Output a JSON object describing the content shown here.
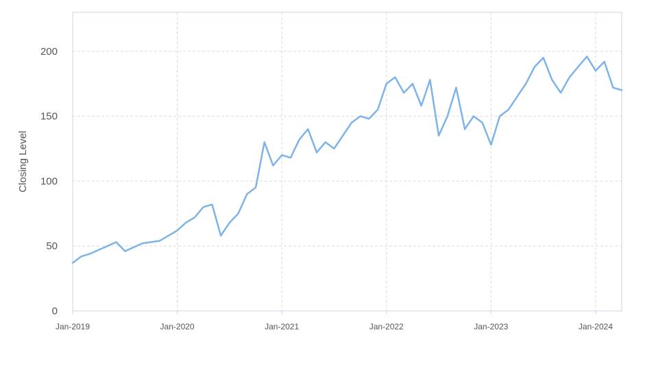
{
  "chart_data": {
    "type": "line",
    "title": "",
    "xlabel": "",
    "ylabel": "Closing Level",
    "x_tick_labels": [
      "Jan-2019",
      "Jan-2020",
      "Jan-2021",
      "Jan-2022",
      "Jan-2023",
      "Jan-2024"
    ],
    "x_ticks": [
      "2019-01",
      "2020-01",
      "2021-01",
      "2022-01",
      "2023-01",
      "2024-01"
    ],
    "xlim": [
      "2019-01",
      "2024-04"
    ],
    "y_ticks": [
      0,
      50,
      100,
      150,
      200
    ],
    "ylim": [
      0,
      230
    ],
    "grid": true,
    "legend": "none",
    "line_color": "#7eb3e8",
    "series": [
      {
        "x": [
          "2019-01",
          "2019-02",
          "2019-03",
          "2019-04",
          "2019-05",
          "2019-06",
          "2019-07",
          "2019-08",
          "2019-09",
          "2019-10",
          "2019-11",
          "2019-12",
          "2020-01",
          "2020-02",
          "2020-03",
          "2020-04",
          "2020-05",
          "2020-06",
          "2020-07",
          "2020-08",
          "2020-09",
          "2020-10",
          "2020-11",
          "2020-12",
          "2021-01",
          "2021-02",
          "2021-03",
          "2021-04",
          "2021-05",
          "2021-06",
          "2021-07",
          "2021-08",
          "2021-09",
          "2021-10",
          "2021-11",
          "2021-12",
          "2022-01",
          "2022-02",
          "2022-03",
          "2022-04",
          "2022-05",
          "2022-06",
          "2022-07",
          "2022-08",
          "2022-09",
          "2022-10",
          "2022-11",
          "2022-12",
          "2023-01",
          "2023-02",
          "2023-03",
          "2023-04",
          "2023-05",
          "2023-06",
          "2023-07",
          "2023-08",
          "2023-09",
          "2023-10",
          "2023-11",
          "2023-12",
          "2024-01",
          "2024-02",
          "2024-03",
          "2024-04"
        ],
        "values": [
          37,
          42,
          44,
          47,
          50,
          53,
          46,
          49,
          52,
          53,
          54,
          58,
          62,
          68,
          72,
          80,
          82,
          58,
          68,
          75,
          90,
          95,
          130,
          112,
          120,
          118,
          132,
          140,
          122,
          130,
          125,
          135,
          145,
          150,
          148,
          155,
          175,
          180,
          168,
          175,
          158,
          178,
          135,
          150,
          172,
          140,
          150,
          145,
          128,
          150,
          155,
          165,
          175,
          188,
          195,
          178,
          168,
          180,
          188,
          196,
          185,
          192,
          172,
          170
        ]
      }
    ]
  }
}
